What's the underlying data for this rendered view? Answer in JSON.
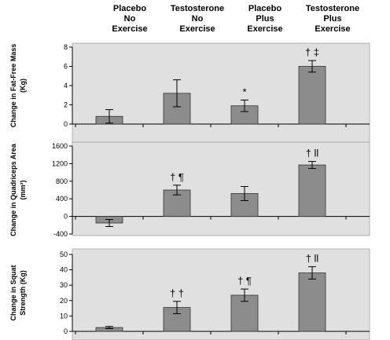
{
  "categories": [
    [
      "Placebo",
      "No",
      "Exercise"
    ],
    [
      "Testosterone",
      "No",
      "Exercise"
    ],
    [
      "Placebo",
      "Plus",
      "Exercise"
    ],
    [
      "Testosterone",
      "Plus",
      "Exercise"
    ]
  ],
  "chart_data": [
    {
      "type": "bar",
      "ylabel": [
        "Change in Fat-Free Mass",
        "(Kg)"
      ],
      "values": [
        0.8,
        3.2,
        1.9,
        6.0
      ],
      "errors": [
        0.7,
        1.4,
        0.6,
        0.6
      ],
      "annotations": [
        null,
        null,
        "*",
        "† ‡"
      ],
      "ylim": [
        0,
        8
      ],
      "yticks": [
        0,
        2,
        4,
        6,
        8
      ],
      "color": "#8c8c8c"
    },
    {
      "type": "bar",
      "ylabel": [
        "Change in Quadriceps Area",
        "(mm²)"
      ],
      "values": [
        -150,
        600,
        520,
        1170
      ],
      "errors": [
        80,
        110,
        160,
        80
      ],
      "annotations": [
        null,
        "† ¶",
        null,
        "† ll"
      ],
      "ylim": [
        -400,
        1600
      ],
      "yticks": [
        -400,
        0,
        400,
        800,
        1200,
        1600
      ],
      "color": "#8c8c8c"
    },
    {
      "type": "bar",
      "ylabel": [
        "Change in Squat",
        "Strength (Kg)"
      ],
      "values": [
        2.5,
        15.5,
        23.5,
        38
      ],
      "errors": [
        0.7,
        4,
        4,
        4
      ],
      "annotations": [
        null,
        "† †",
        "† ¶",
        "† ll"
      ],
      "ylim": [
        0,
        50
      ],
      "yticks": [
        0,
        10,
        20,
        30,
        40,
        50
      ],
      "color": "#8c8c8c"
    }
  ]
}
